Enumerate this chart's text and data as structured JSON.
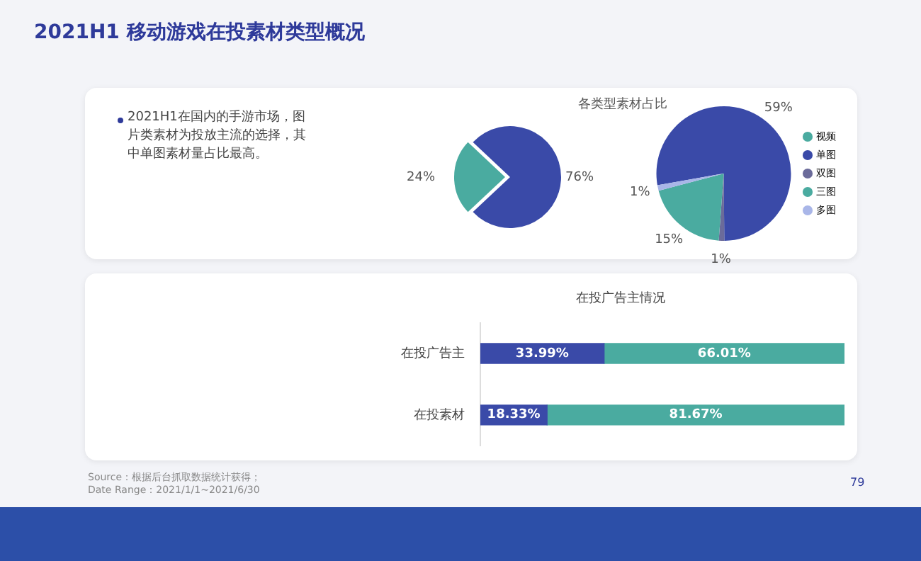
{
  "chart_data": [
    {
      "type": "pie",
      "title": "2021H1 移动游戏在投素材类型概况",
      "categories": [
        "视频",
        null
      ],
      "values": [
        24,
        76
      ],
      "value_labels": [
        "24%",
        "76%"
      ],
      "colors": [
        "#4aaba0",
        "#3a4aa8"
      ],
      "annotations": [
        "2021H1在国内的手游市场，图片类素材为投放主流的选择，其中单图素材量占比最高。"
      ]
    },
    {
      "type": "pie",
      "title": "各类型素材占比",
      "categories": [
        "单图",
        "双图",
        "三图",
        "多图"
      ],
      "values": [
        59,
        1,
        15,
        1
      ],
      "value_labels": [
        "59%",
        "1%",
        "15%",
        "1%"
      ],
      "colors": [
        "#3a4aa8",
        "#6b6b9a",
        "#4aaba0",
        "#a9b6e8"
      ],
      "legend": "right"
    },
    {
      "type": "bar",
      "orientation": "horizontal",
      "stacked": true,
      "title": "在投广告主情况",
      "categories": [
        "在投广告主",
        "在投素材"
      ],
      "xlim": [
        0,
        100
      ],
      "tick_labels": "y",
      "series": [
        {
          "color": "#3a4aa8",
          "values": [
            33.99,
            18.33
          ],
          "value_labels": [
            "33.99%",
            "18.33%"
          ]
        },
        {
          "color": "#4aaba0",
          "values": [
            66.01,
            81.67
          ],
          "value_labels": [
            "66.01%",
            "81.67%"
          ]
        }
      ],
      "annotations": [
        "Source：根据后台抓取数据统计获得；",
        "Date Range：2021/1/1~2021/6/30",
        "79"
      ]
    }
  ]
}
